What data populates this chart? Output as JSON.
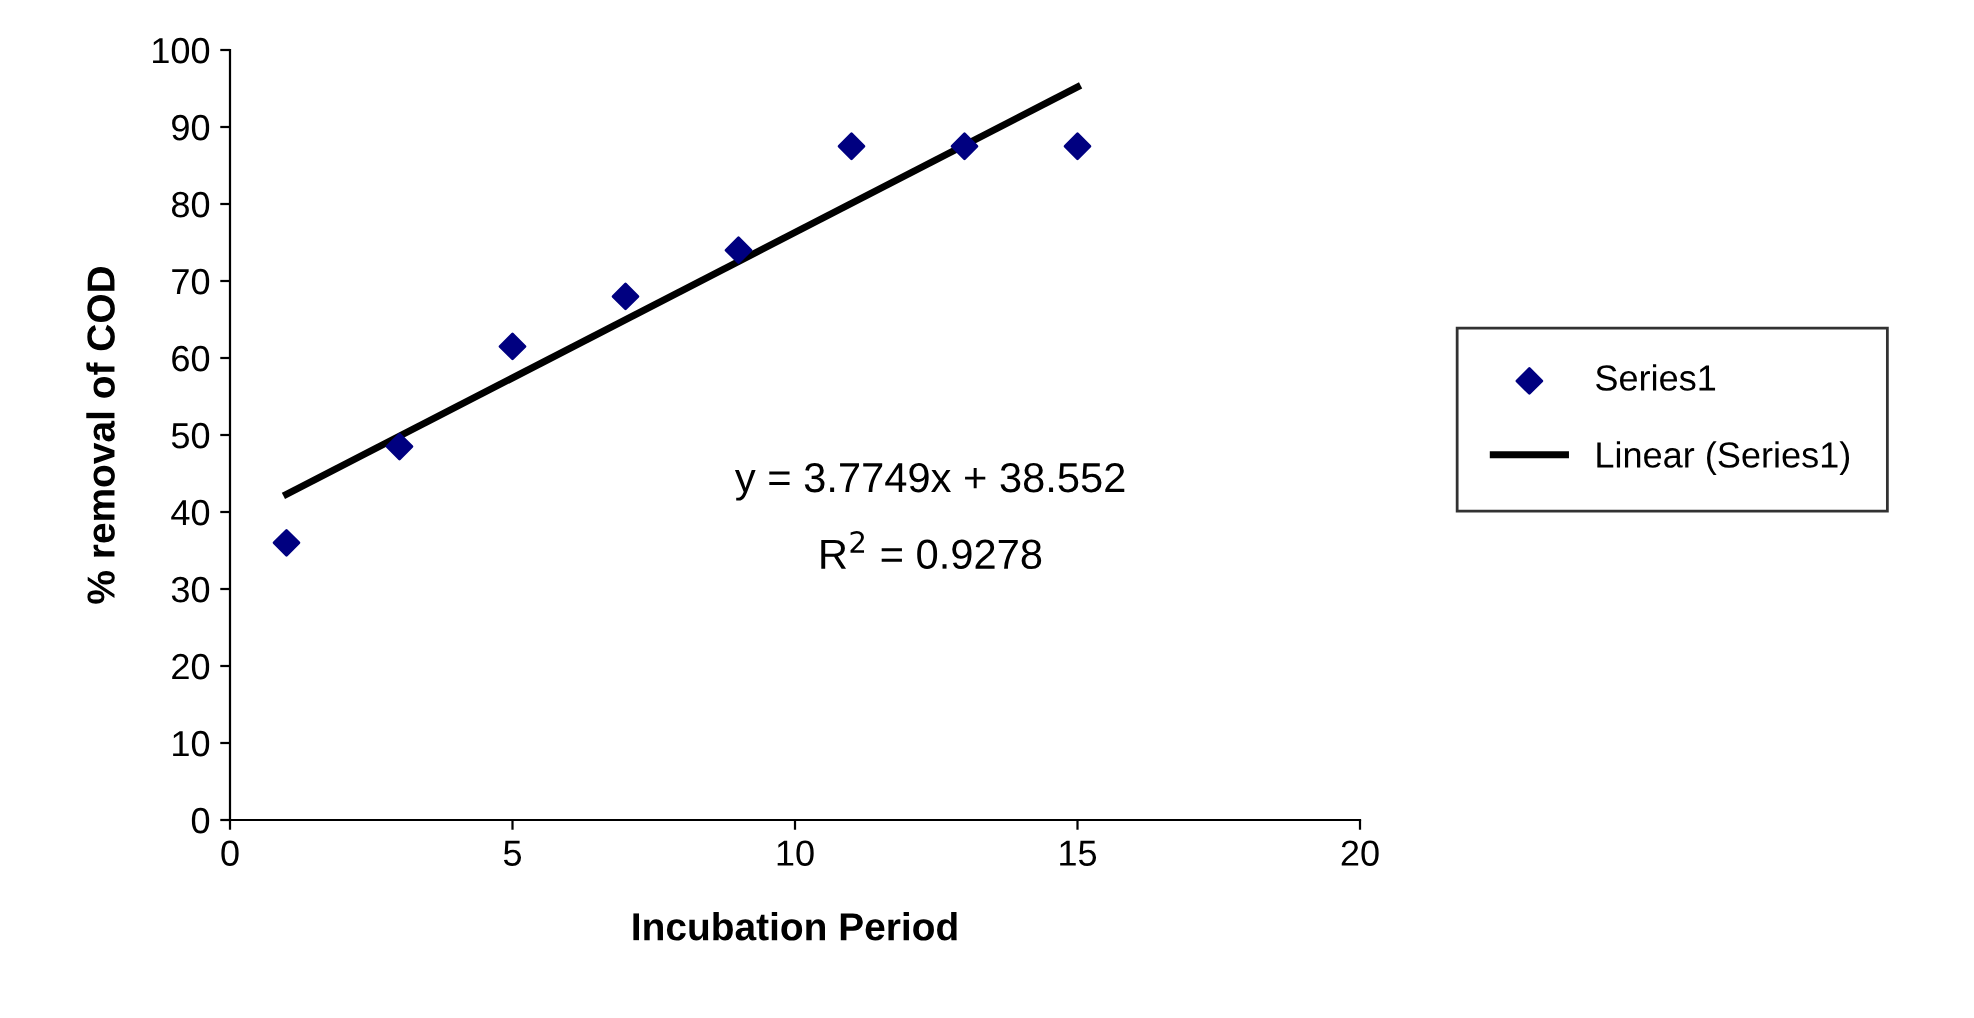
{
  "chart_data": {
    "type": "scatter",
    "xlabel": "Incubation Period",
    "ylabel": "% removal of COD",
    "series": [
      {
        "name": "Series1",
        "color": "#000080",
        "marker": "diamond",
        "x": [
          1,
          3,
          5,
          7,
          9,
          11,
          13,
          15
        ],
        "values": [
          36,
          48.5,
          61.5,
          68,
          74,
          87.5,
          87.5,
          87.5
        ]
      },
      {
        "name": "Linear (Series1)",
        "type": "line",
        "color": "#000000",
        "marker": "none",
        "line_style": "solid",
        "x": [
          1,
          15
        ],
        "values": [
          42.3,
          95.2
        ]
      }
    ],
    "annotations": [
      "y = 3.7749x + 38.552",
      "R$^{2}$ = 0.9278"
    ],
    "xlim": [
      0,
      20
    ],
    "xticks": [
      0,
      5,
      10,
      15,
      20
    ],
    "ylim": [
      0,
      100
    ],
    "yticks": [
      0,
      10,
      20,
      30,
      40,
      50,
      60,
      70,
      80,
      90,
      100
    ],
    "grid": false,
    "legend": "right"
  }
}
